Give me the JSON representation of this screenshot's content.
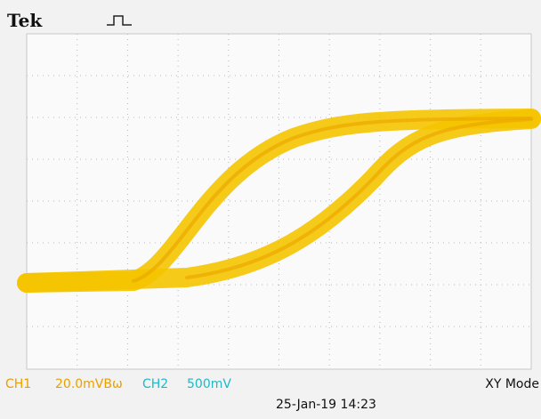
{
  "header": {
    "brand": "Tek"
  },
  "footer": {
    "ch1_label": "CH1",
    "ch1_scale": "20.0mVBω",
    "ch2_label": "CH2",
    "ch2_scale": "500mV",
    "mode": "XY Mode",
    "timestamp": "25-Jan-19 14:23"
  }
}
